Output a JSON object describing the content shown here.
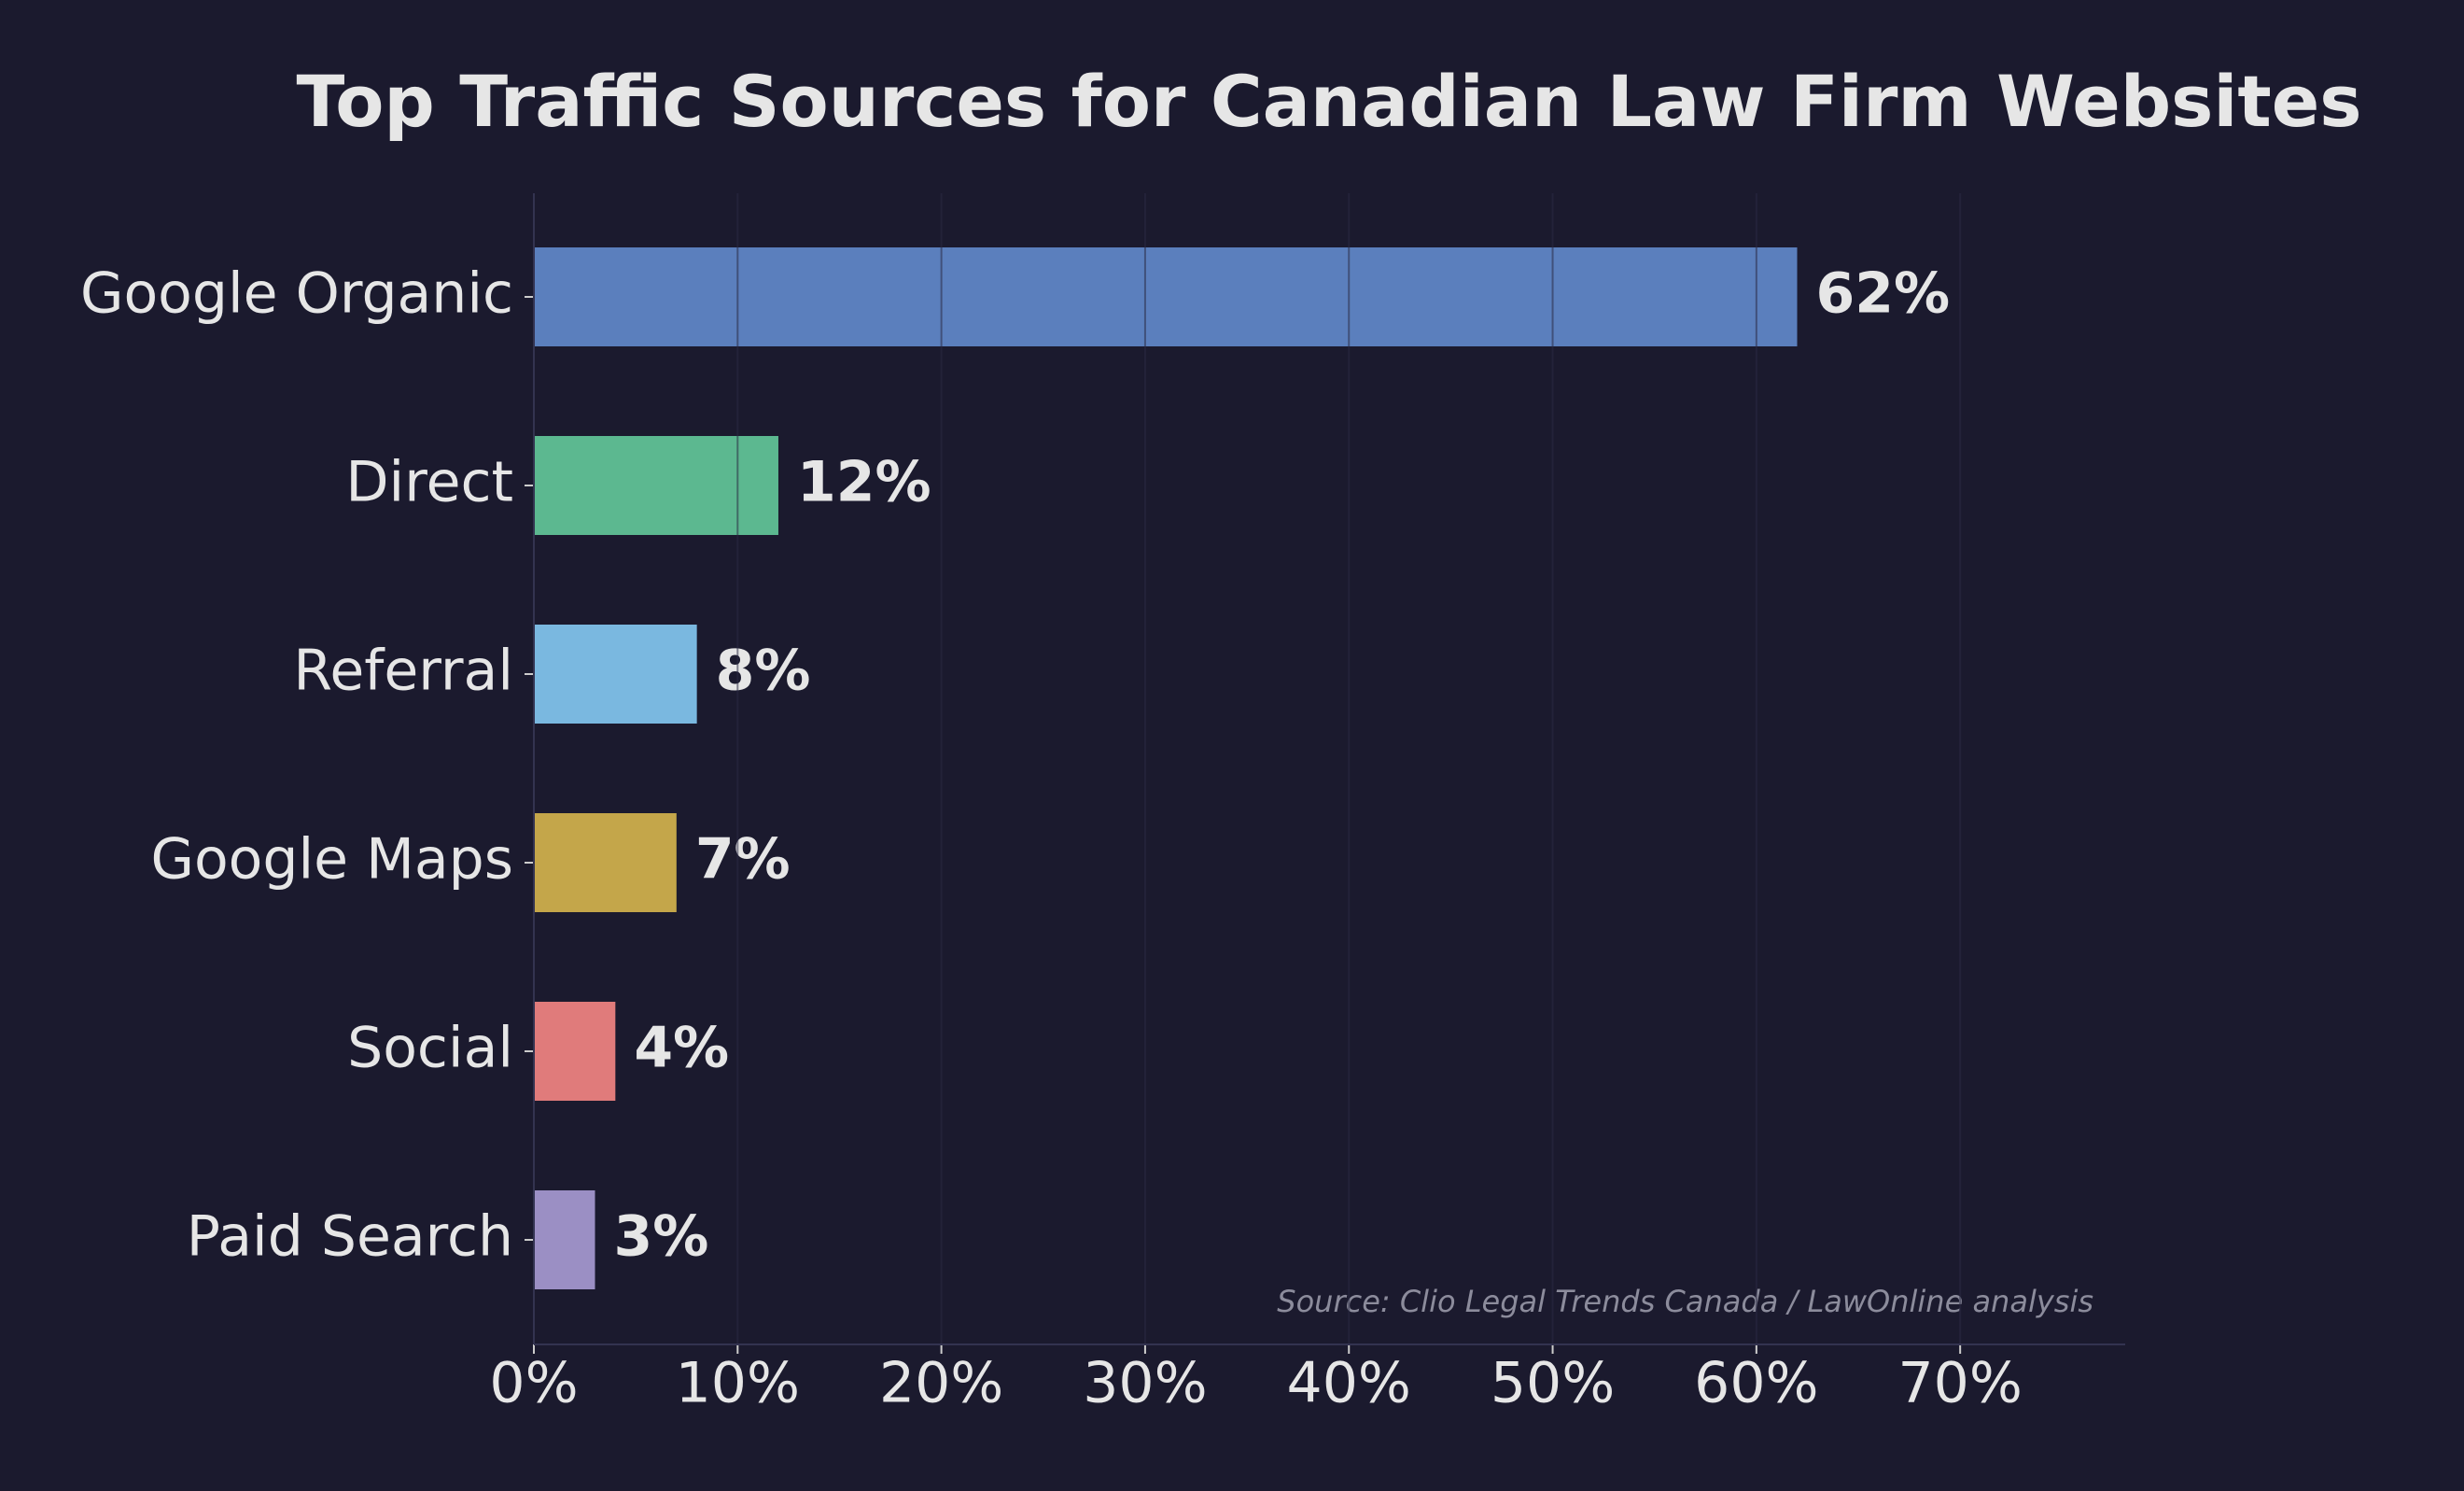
{
  "chart_data": {
    "type": "hbar",
    "title": "Top Traffic Sources for Canadian Law Firm Websites",
    "categories": [
      "Google Organic",
      "Direct",
      "Referral",
      "Google Maps",
      "Social",
      "Paid Search"
    ],
    "values": [
      62,
      12,
      8,
      7,
      4,
      3
    ],
    "value_labels": [
      "62%",
      "12%",
      "8%",
      "7%",
      "4%",
      "3%"
    ],
    "colors": [
      "#5b7fbd",
      "#5cb890",
      "#7ab8e0",
      "#c4a64a",
      "#e07b7b",
      "#9b8fc4"
    ],
    "xlim": [
      0,
      78.1
    ],
    "xticks": [
      {
        "value": 0,
        "label": "0%"
      },
      {
        "value": 10,
        "label": "10%"
      },
      {
        "value": 20,
        "label": "20%"
      },
      {
        "value": 30,
        "label": "30%"
      },
      {
        "value": 40,
        "label": "40%"
      },
      {
        "value": 50,
        "label": "50%"
      },
      {
        "value": 60,
        "label": "60%"
      },
      {
        "value": 70,
        "label": "70%"
      }
    ],
    "grid": true,
    "annotation": "Source: Clio Legal Trends Canada / LawOnline analysis"
  }
}
